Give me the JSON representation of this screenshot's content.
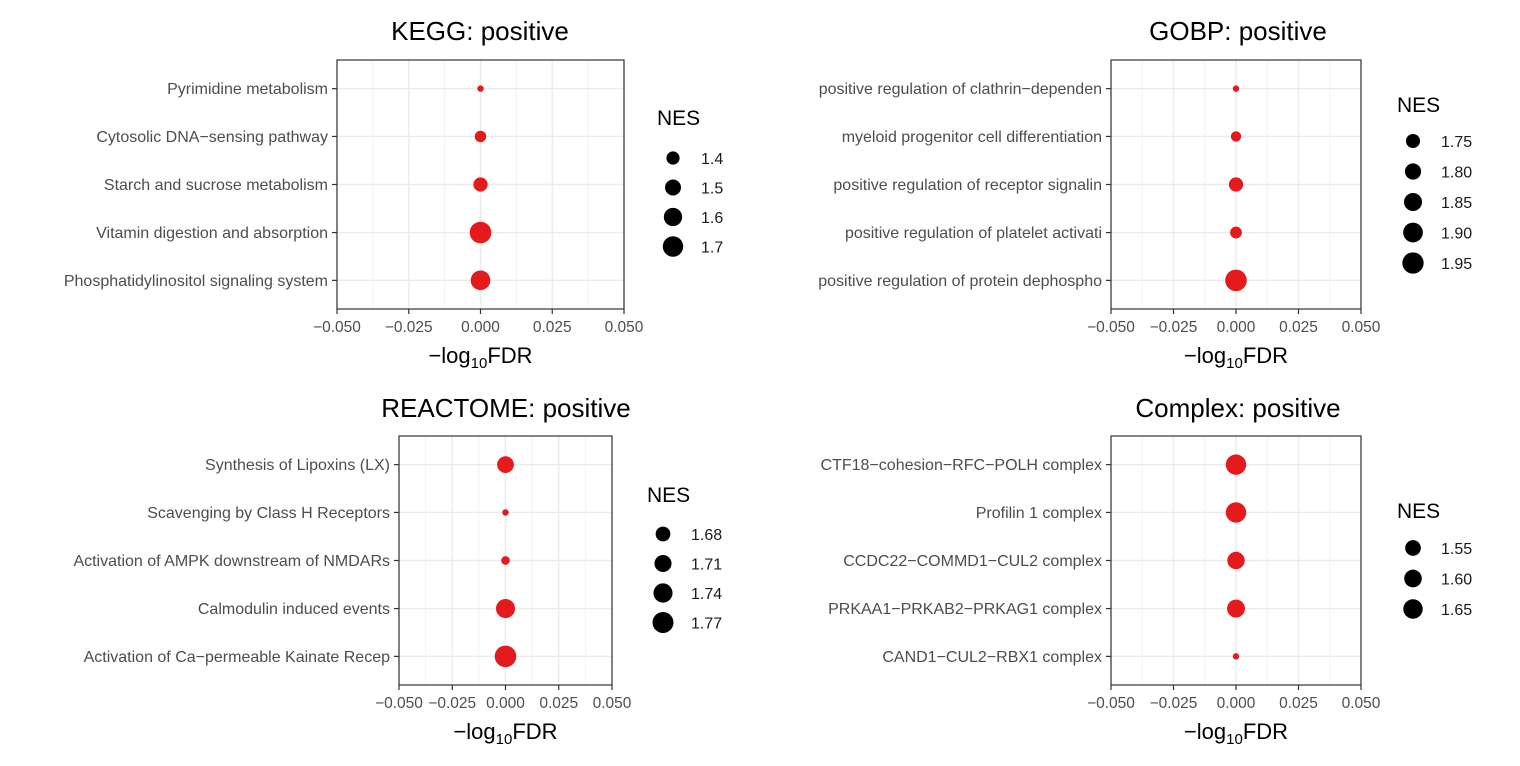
{
  "chart_data": [
    {
      "type": "scatter",
      "title": "KEGG: positive",
      "xlabel": "-log10FDR",
      "xlim": [
        -0.05,
        0.05
      ],
      "xticks": [
        "−0.050",
        "−0.025",
        "0.000",
        "0.025",
        "0.050"
      ],
      "categories": [
        "Pyrimidine metabolism",
        "Cytosolic DNA−sensing pathway",
        "Starch and sucrose metabolism",
        "Vitamin digestion and absorption",
        "Phosphatidylinositol signaling system"
      ],
      "x": [
        0,
        0,
        0,
        0,
        0
      ],
      "nes": [
        1.34,
        1.43,
        1.5,
        1.76,
        1.68
      ],
      "color": "#e41a1c",
      "grid": true,
      "legend": {
        "title": "NES",
        "values": [
          "1.4",
          "1.5",
          "1.6",
          "1.7"
        ],
        "placement": "right"
      }
    },
    {
      "type": "scatter",
      "title": "GOBP: positive",
      "xlabel": "-log10FDR",
      "xlim": [
        -0.05,
        0.05
      ],
      "xticks": [
        "−0.050",
        "−0.025",
        "0.000",
        "0.025",
        "0.050"
      ],
      "categories": [
        "positive regulation of clathrin−dependen",
        "myeloid progenitor cell differentiation",
        "positive regulation of receptor signalin",
        "positive regulation of platelet activati",
        "positive regulation of protein dephospho"
      ],
      "x": [
        0,
        0,
        0,
        0,
        0
      ],
      "nes": [
        1.7,
        1.74,
        1.8,
        1.76,
        1.96
      ],
      "color": "#e41a1c",
      "grid": true,
      "legend": {
        "title": "NES",
        "values": [
          "1.75",
          "1.80",
          "1.85",
          "1.90",
          "1.95"
        ],
        "placement": "right"
      }
    },
    {
      "type": "scatter",
      "title": "REACTOME: positive",
      "xlabel": "-log10FDR",
      "xlim": [
        -0.05,
        0.05
      ],
      "xticks": [
        "−0.050",
        "−0.025",
        "0.000",
        "0.025",
        "0.050"
      ],
      "categories": [
        "Synthesis of Lipoxins (LX)",
        "Scavenging by Class H Receptors",
        "Activation of AMPK downstream of NMDARs",
        "Calmodulin induced events",
        "Activation of Ca−permeable Kainate Recep"
      ],
      "x": [
        0,
        0,
        0,
        0,
        0
      ],
      "nes": [
        1.725,
        1.655,
        1.665,
        1.75,
        1.78
      ],
      "color": "#e41a1c",
      "grid": true,
      "legend": {
        "title": "NES",
        "values": [
          "1.68",
          "1.71",
          "1.74",
          "1.77"
        ],
        "placement": "right"
      }
    },
    {
      "type": "scatter",
      "title": "Complex: positive",
      "xlabel": "-log10FDR",
      "xlim": [
        -0.05,
        0.05
      ],
      "xticks": [
        "−0.050",
        "−0.025",
        "0.000",
        "0.025",
        "0.050"
      ],
      "categories": [
        "CTF18−cohesion−RFC−POLH complex",
        "Profilin 1 complex",
        "CCDC22−COMMD1−CUL2 complex",
        "PRKAA1−PRKAB2−PRKAG1 complex",
        "CAND1−CUL2−RBX1 complex"
      ],
      "x": [
        0,
        0,
        0,
        0,
        0
      ],
      "nes": [
        1.68,
        1.68,
        1.62,
        1.63,
        1.48
      ],
      "color": "#e41a1c",
      "grid": true,
      "legend": {
        "title": "NES",
        "values": [
          "1.55",
          "1.60",
          "1.65"
        ],
        "placement": "right"
      }
    }
  ]
}
